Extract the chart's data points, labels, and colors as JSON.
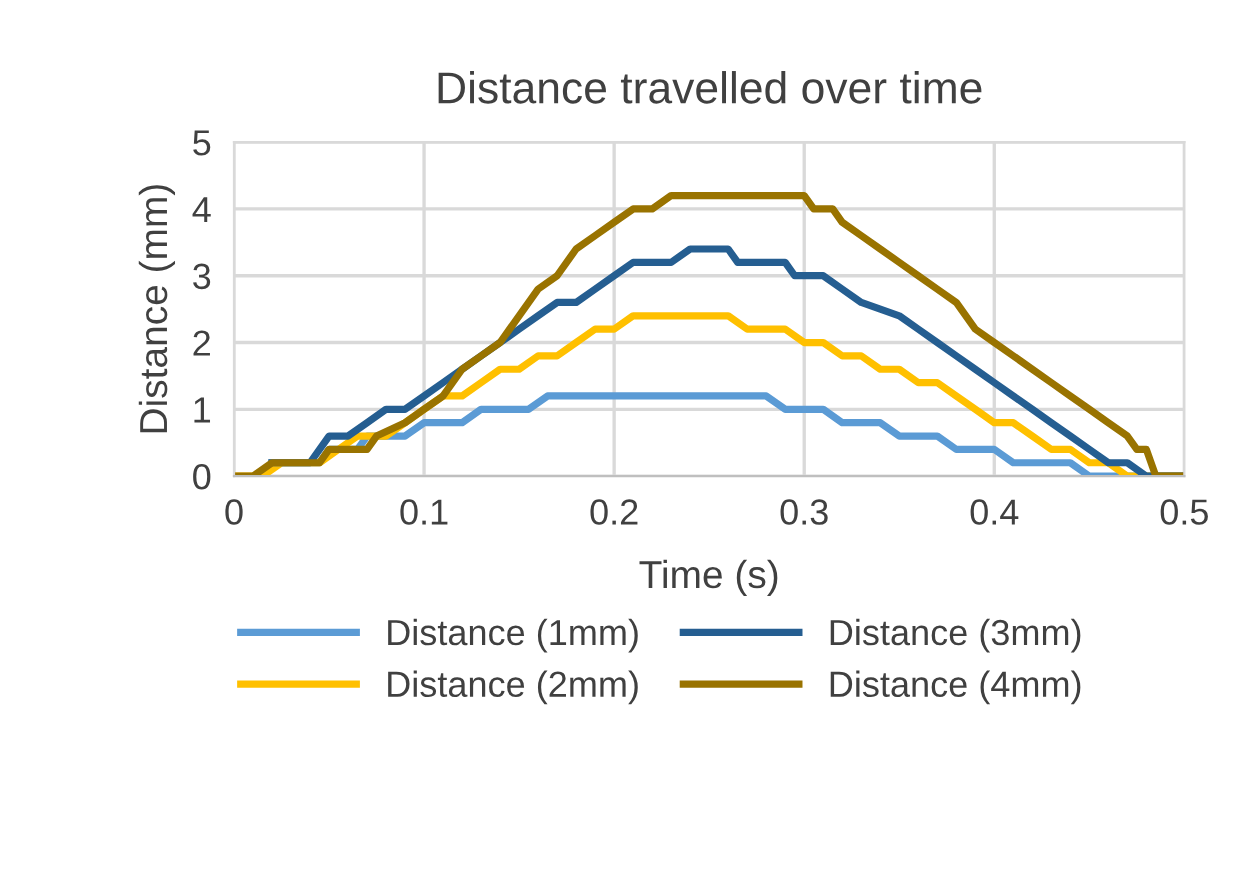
{
  "chart_data": {
    "type": "line",
    "title": "Distance travelled over time",
    "xlabel": "Time (s)",
    "ylabel": "Distance (mm)",
    "xlim": [
      0,
      0.5
    ],
    "xticks": [
      0,
      0.1,
      0.2,
      0.3,
      0.4,
      0.5
    ],
    "ylim": [
      0,
      5
    ],
    "yticks": [
      0,
      1,
      2,
      3,
      4,
      5
    ],
    "grid": true,
    "legend": "bottom",
    "marker": "none",
    "line_style": "solid",
    "series": [
      {
        "name": "Distance (1mm)",
        "color": "#5b9bd5",
        "x": [
          0.02,
          0.045,
          0.05,
          0.065,
          0.07,
          0.09,
          0.1,
          0.12,
          0.13,
          0.155,
          0.165,
          0.28,
          0.29,
          0.31,
          0.32,
          0.34,
          0.35,
          0.37,
          0.38,
          0.4,
          0.41,
          0.44,
          0.45,
          0.5
        ],
        "values": [
          0.2,
          0.2,
          0.4,
          0.4,
          0.6,
          0.6,
          0.8,
          0.8,
          1.0,
          1.0,
          1.2,
          1.2,
          1.0,
          1.0,
          0.8,
          0.8,
          0.6,
          0.6,
          0.4,
          0.4,
          0.2,
          0.2,
          0,
          0
        ]
      },
      {
        "name": "Distance (2mm)",
        "color": "#ffc000",
        "x": [
          0,
          0.015,
          0.025,
          0.045,
          0.055,
          0.065,
          0.08,
          0.09,
          0.1,
          0.11,
          0.12,
          0.13,
          0.14,
          0.15,
          0.16,
          0.17,
          0.18,
          0.19,
          0.2,
          0.21,
          0.26,
          0.27,
          0.29,
          0.3,
          0.31,
          0.32,
          0.33,
          0.34,
          0.35,
          0.36,
          0.37,
          0.38,
          0.39,
          0.4,
          0.41,
          0.42,
          0.43,
          0.44,
          0.45,
          0.46,
          0.47,
          0.5
        ],
        "values": [
          0,
          0,
          0.2,
          0.2,
          0.4,
          0.6,
          0.6,
          0.8,
          1.0,
          1.2,
          1.2,
          1.4,
          1.6,
          1.6,
          1.8,
          1.8,
          2.0,
          2.2,
          2.2,
          2.4,
          2.4,
          2.2,
          2.2,
          2.0,
          2.0,
          1.8,
          1.8,
          1.6,
          1.6,
          1.4,
          1.4,
          1.2,
          1.0,
          0.8,
          0.8,
          0.6,
          0.4,
          0.4,
          0.2,
          0.2,
          0,
          0
        ]
      },
      {
        "name": "Distance (3mm)",
        "color": "#255e91",
        "x": [
          0.02,
          0.04,
          0.05,
          0.06,
          0.07,
          0.08,
          0.09,
          0.1,
          0.11,
          0.12,
          0.13,
          0.14,
          0.15,
          0.16,
          0.17,
          0.18,
          0.19,
          0.2,
          0.21,
          0.23,
          0.24,
          0.26,
          0.265,
          0.29,
          0.295,
          0.31,
          0.32,
          0.33,
          0.34,
          0.35,
          0.36,
          0.37,
          0.38,
          0.39,
          0.4,
          0.41,
          0.42,
          0.43,
          0.44,
          0.45,
          0.46,
          0.47,
          0.48,
          0.5
        ],
        "values": [
          0.2,
          0.2,
          0.6,
          0.6,
          0.8,
          1.0,
          1.0,
          1.2,
          1.4,
          1.6,
          1.8,
          2.0,
          2.2,
          2.4,
          2.6,
          2.6,
          2.8,
          3.0,
          3.2,
          3.2,
          3.4,
          3.4,
          3.2,
          3.2,
          3.0,
          3.0,
          2.8,
          2.6,
          2.5,
          2.4,
          2.2,
          2.0,
          1.8,
          1.6,
          1.4,
          1.2,
          1.0,
          0.8,
          0.6,
          0.4,
          0.2,
          0.2,
          0,
          0
        ]
      },
      {
        "name": "Distance (4mm)",
        "color": "#997300",
        "x": [
          0,
          0.01,
          0.02,
          0.045,
          0.05,
          0.07,
          0.075,
          0.09,
          0.1,
          0.11,
          0.12,
          0.13,
          0.14,
          0.15,
          0.16,
          0.17,
          0.18,
          0.19,
          0.2,
          0.21,
          0.22,
          0.23,
          0.3,
          0.305,
          0.315,
          0.32,
          0.33,
          0.34,
          0.35,
          0.36,
          0.37,
          0.38,
          0.39,
          0.4,
          0.41,
          0.42,
          0.43,
          0.44,
          0.45,
          0.46,
          0.47,
          0.475,
          0.48,
          0.485,
          0.5
        ],
        "values": [
          0,
          0,
          0.2,
          0.2,
          0.4,
          0.4,
          0.6,
          0.8,
          1.0,
          1.2,
          1.6,
          1.8,
          2.0,
          2.4,
          2.8,
          3.0,
          3.4,
          3.6,
          3.8,
          4.0,
          4.0,
          4.2,
          4.2,
          4.0,
          4.0,
          3.8,
          3.6,
          3.4,
          3.2,
          3.0,
          2.8,
          2.6,
          2.2,
          2.0,
          1.8,
          1.6,
          1.4,
          1.2,
          1.0,
          0.8,
          0.6,
          0.4,
          0.4,
          0,
          0
        ]
      }
    ]
  }
}
